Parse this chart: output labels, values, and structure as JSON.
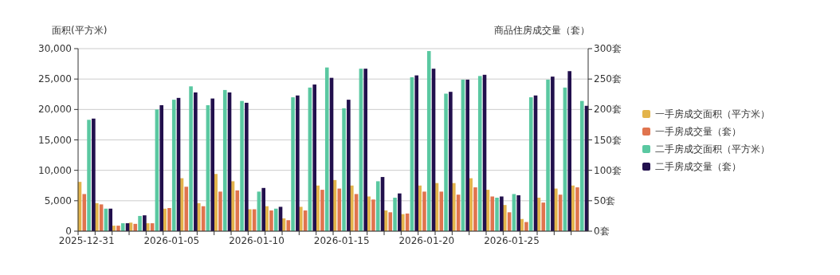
{
  "chart_data": {
    "type": "bar",
    "ylabel": "面积(平方米)",
    "y2label": "商品住房成交量（套）",
    "categories": [
      "2025-12-31",
      null,
      null,
      null,
      null,
      "2026-01-05",
      null,
      null,
      null,
      null,
      "2026-01-10",
      null,
      null,
      null,
      null,
      "2026-01-15",
      null,
      null,
      null,
      null,
      "2026-01-20",
      null,
      null,
      null,
      null,
      "2026-01-25",
      null,
      null,
      null,
      null
    ],
    "ylim": [
      0,
      30000
    ],
    "yticks": [
      {
        "value": 0,
        "label": "0"
      },
      {
        "value": 5000,
        "label": "5,000"
      },
      {
        "value": 10000,
        "label": "10,000"
      },
      {
        "value": 15000,
        "label": "15,000"
      },
      {
        "value": 20000,
        "label": "20,000"
      },
      {
        "value": 25000,
        "label": "25,000"
      },
      {
        "value": 30000,
        "label": "30,000"
      }
    ],
    "y2lim": [
      0,
      300
    ],
    "y2ticks": [
      {
        "value": 0,
        "label": "0套"
      },
      {
        "value": 50,
        "label": "50套"
      },
      {
        "value": 100,
        "label": "100套"
      },
      {
        "value": 150,
        "label": "150套"
      },
      {
        "value": 200,
        "label": "200套"
      },
      {
        "value": 250,
        "label": "250套"
      },
      {
        "value": 300,
        "label": "300套"
      }
    ],
    "grid": "y",
    "legend": "right",
    "series": [
      {
        "name": "一手房成交面积（平方米）",
        "color": "#e3b44b",
        "values": [
          8100,
          4600,
          900,
          1400,
          1300,
          3700,
          8700,
          4600,
          9400,
          8200,
          3600,
          4100,
          2100,
          4000,
          7500,
          8400,
          7500,
          5700,
          3400,
          2800,
          7500,
          7900,
          7900,
          8700,
          6800,
          4300,
          2000,
          5500,
          7000,
          7500
        ]
      },
      {
        "name": "一手房成交量（套）",
        "color": "#e0744e",
        "axis": "y2",
        "values": [
          61,
          44,
          9,
          12,
          13,
          38,
          73,
          41,
          65,
          67,
          36,
          34,
          18,
          34,
          68,
          70,
          61,
          52,
          31,
          29,
          65,
          65,
          60,
          72,
          57,
          31,
          15,
          47,
          60,
          72
        ]
      },
      {
        "name": "二手房成交面积（平方米）",
        "color": "#5ac8a1",
        "values": [
          18300,
          3700,
          1300,
          2500,
          20000,
          21600,
          23800,
          20700,
          23200,
          21400,
          6500,
          3700,
          22000,
          23600,
          26900,
          20200,
          26700,
          8200,
          5500,
          25300,
          29600,
          22600,
          24900,
          25500,
          5500,
          6100,
          22000,
          24900,
          23600,
          21400
        ]
      },
      {
        "name": "二手房成交量（套）",
        "color": "#22104d",
        "axis": "y2",
        "values": [
          185,
          37,
          13,
          26,
          207,
          219,
          228,
          218,
          228,
          211,
          71,
          40,
          223,
          241,
          252,
          216,
          267,
          89,
          62,
          256,
          267,
          229,
          249,
          257,
          57,
          59,
          223,
          254,
          263,
          206
        ]
      }
    ]
  }
}
